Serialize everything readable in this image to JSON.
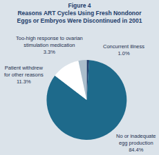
{
  "chart_data": {
    "type": "pie",
    "title": "Figure 4",
    "subtitle": "Reasons ART Cycles Using Fresh Nondonor Eggs or Embryos Were Discontinued in 2001",
    "categories": [
      "Concurrent illness",
      "No or inadequate egg production",
      "Patient withdrew for other reasons",
      "Too-high response to ovarian stimulation medication"
    ],
    "values": [
      1.0,
      84.4,
      11.3,
      3.3
    ],
    "value_labels": [
      "1.0%",
      "84.4%",
      "11.3%",
      "3.3%"
    ],
    "colors": [
      "#1d3d6b",
      "#1e6a8b",
      "#ffffff",
      "#aabdcb"
    ],
    "data_labels": true
  }
}
